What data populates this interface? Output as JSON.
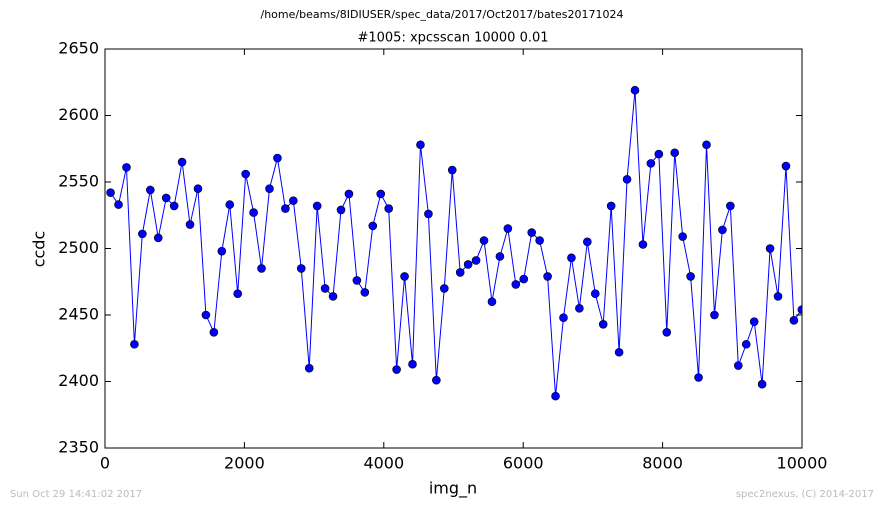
{
  "chart_data": {
    "type": "line",
    "suptitle": "/home/beams/8IDIUSER/spec_data/2017/Oct2017/bates20171024",
    "title": "#1005: xpcsscan 10000 0.01",
    "x_label": "img_n",
    "y_label": "ccdc",
    "footer_left": "Sun Oct 29 14:41:02 2017",
    "footer_right": "spec2nexus, (C) 2014-2017",
    "xlim": [
      0,
      10000
    ],
    "xticks": [
      0,
      2000,
      4000,
      6000,
      8000,
      10000
    ],
    "ylim": [
      2350,
      2650
    ],
    "yticks": [
      2350,
      2400,
      2450,
      2500,
      2550,
      2600,
      2650
    ],
    "grid": false,
    "marker": "circle",
    "x": [
      80,
      194,
      308,
      422,
      536,
      650,
      764,
      878,
      992,
      1106,
      1220,
      1334,
      1448,
      1562,
      1676,
      1790,
      1904,
      2018,
      2132,
      2246,
      2360,
      2474,
      2588,
      2702,
      2816,
      2930,
      3044,
      3158,
      3272,
      3386,
      3500,
      3614,
      3728,
      3842,
      3956,
      4070,
      4184,
      4298,
      4412,
      4526,
      4640,
      4754,
      4868,
      4982,
      5096,
      5210,
      5324,
      5438,
      5552,
      5666,
      5780,
      5894,
      6008,
      6122,
      6236,
      6350,
      6464,
      6578,
      6692,
      6806,
      6920,
      7034,
      7148,
      7262,
      7376,
      7490,
      7604,
      7718,
      7832,
      7946,
      8060,
      8174,
      8288,
      8402,
      8516,
      8630,
      8744,
      8858,
      8972,
      9086,
      9200,
      9314,
      9428,
      9542,
      9656,
      9770,
      9884,
      9998
    ],
    "series": [
      {
        "name": "ccdc",
        "color": "#0000ff",
        "values": [
          2542,
          2533,
          2561,
          2428,
          2511,
          2544,
          2508,
          2538,
          2532,
          2565,
          2518,
          2545,
          2450,
          2437,
          2498,
          2533,
          2466,
          2556,
          2527,
          2485,
          2545,
          2568,
          2530,
          2536,
          2485,
          2410,
          2532,
          2470,
          2464,
          2529,
          2541,
          2476,
          2467,
          2517,
          2541,
          2530,
          2409,
          2479,
          2413,
          2578,
          2526,
          2401,
          2470,
          2559,
          2482,
          2488,
          2491,
          2506,
          2460,
          2494,
          2515,
          2473,
          2477,
          2512,
          2506,
          2479,
          2389,
          2448,
          2493,
          2455,
          2505,
          2466,
          2443,
          2532,
          2422,
          2552,
          2619,
          2503,
          2564,
          2571,
          2437,
          2572,
          2509,
          2479,
          2403,
          2578,
          2450,
          2514,
          2532,
          2412,
          2428,
          2445,
          2398,
          2500,
          2464,
          2562,
          2446,
          2454
        ]
      }
    ]
  }
}
